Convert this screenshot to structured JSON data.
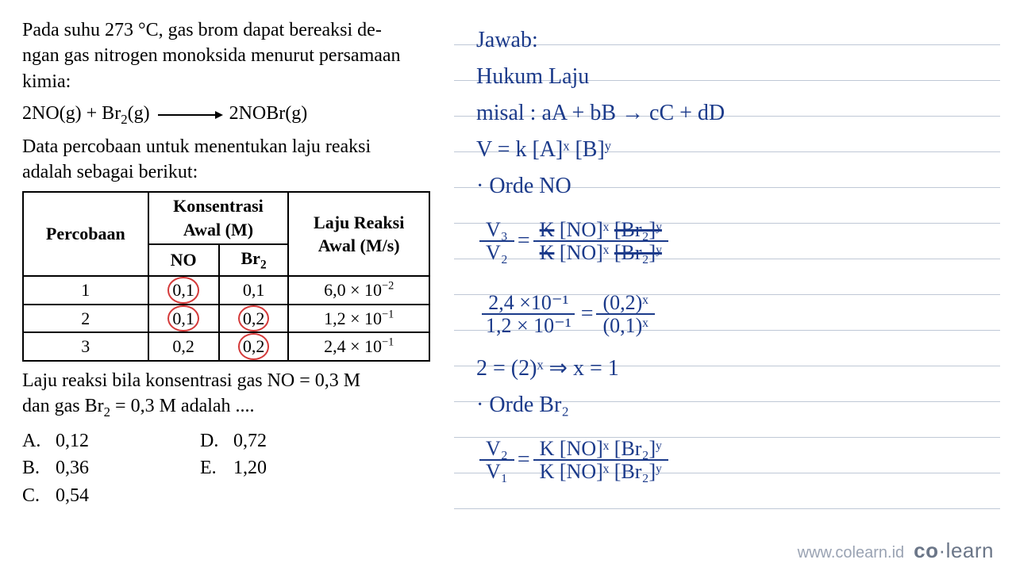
{
  "problem": {
    "line1": "Pada suhu 273 °C, gas brom dapat bereaksi de-",
    "line2": "ngan gas nitrogen monoksida menurut persamaan",
    "line3": "kimia:",
    "eq_lhs": "2NO(g) + Br",
    "eq_sub1": "2",
    "eq_mid": "(g)",
    "eq_rhs": "2NOBr(g)",
    "line4": "Data percobaan untuk menentukan laju reaksi",
    "line5": "adalah sebagai berikut:",
    "after_table_1": "Laju reaksi bila konsentrasi gas NO = 0,3 M",
    "after_table_2": "dan gas Br",
    "after_table_2_sub": "2",
    "after_table_2b": " = 0,3 M adalah ...."
  },
  "table": {
    "h_percobaan": "Percobaan",
    "h_konsentrasi": "Konsentrasi",
    "h_awal_m": "Awal (M)",
    "h_laju": "Laju Reaksi",
    "h_awal_ms": "Awal (M/s)",
    "h_no": "NO",
    "h_br2": "Br",
    "h_br2_sub": "2",
    "rows": [
      {
        "n": "1",
        "no": "0,1",
        "br": "0,1",
        "v": "6,0 × 10",
        "vexp": "−2",
        "circ_no": true,
        "circ_br": false
      },
      {
        "n": "2",
        "no": "0,1",
        "br": "0,2",
        "v": "1,2 × 10",
        "vexp": "−1",
        "circ_no": true,
        "circ_br": true
      },
      {
        "n": "3",
        "no": "0,2",
        "br": "0,2",
        "v": "2,4 × 10",
        "vexp": "−1",
        "circ_no": false,
        "circ_br": true
      }
    ]
  },
  "options": {
    "a": "0,12",
    "b": "0,36",
    "c": "0,54",
    "d": "0,72",
    "e": "1,20",
    "A": "A.",
    "B": "B.",
    "C": "C.",
    "D": "D.",
    "E": "E."
  },
  "hand": {
    "jawab": "Jawab:",
    "hukum": "Hukum Laju",
    "misal": "misal : aA + bB → cC + dD",
    "vk": "V = k [A]ˣ [B]ʸ",
    "orde_no": "· Orde NO",
    "f1_num": "V₃",
    "f1_den": "V₂",
    "f1_eq": " = ",
    "f1r_num": "K [NO]ˣ [Br₂]ʸ",
    "f1r_den": "K [NO]ˣ [Br₂]ʸ",
    "f2_num": "2,4 ×10⁻¹",
    "f2_den": "1,2 × 10⁻¹",
    "f2_eq": " = ",
    "f2r_num": "(0,2)ˣ",
    "f2r_den": "(0,1)ˣ",
    "res1": "2 = (2)ˣ  ⇒  x = 1",
    "orde_br": "· Orde Br₂",
    "f3_num": "V₂",
    "f3_den": "V₁",
    "f3r_num": "K [NO]ˣ [Br₂]ʸ",
    "f3r_den": "K [NO]ˣ [Br₂]ʸ"
  },
  "watermark": {
    "url": "www.colearn.id",
    "brand_a": "co",
    "brand_b": "learn",
    "dot": "·"
  },
  "colors": {
    "ink": "#1b3a8a",
    "circle": "#d43a3a",
    "ruling": "#bfc8d6",
    "text": "#000000",
    "bg": "#ffffff"
  }
}
